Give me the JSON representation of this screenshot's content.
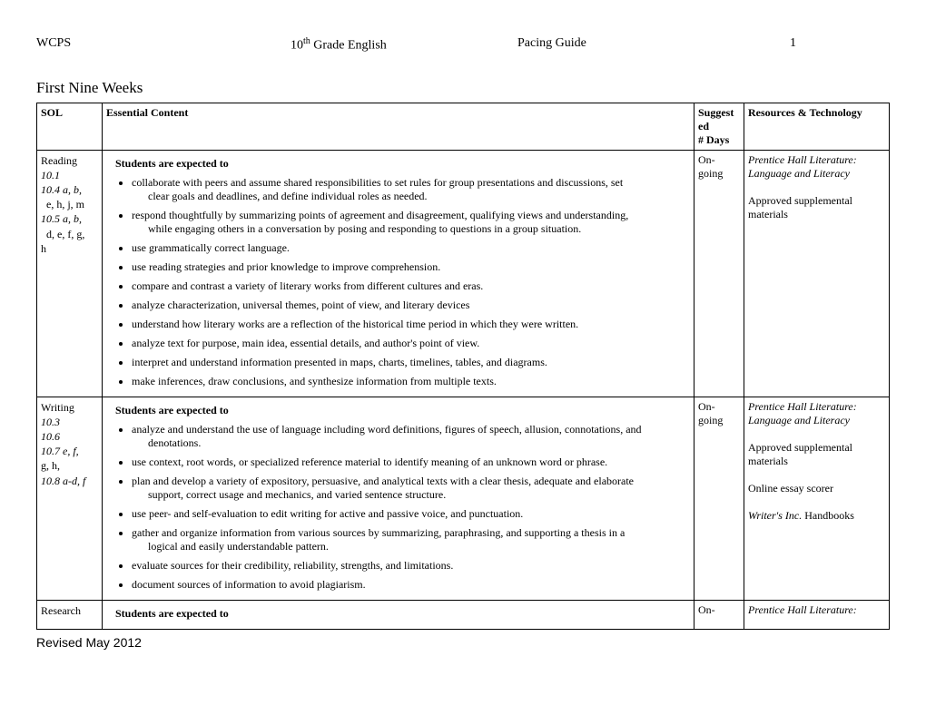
{
  "header": {
    "left": "WCPS",
    "course_prefix": "10",
    "course_sup": "th",
    "course_suffix": " Grade English",
    "guide": "Pacing Guide",
    "page": "1"
  },
  "section_title": "First Nine Weeks",
  "columns": {
    "sol": "SOL",
    "content": "Essential Content",
    "days_a": "Suggest",
    "days_b": "ed",
    "days_c": "# Days",
    "resources": "Resources & Technology"
  },
  "rows": [
    {
      "sol_lines": [
        {
          "t": "Reading",
          "italic": false
        },
        {
          "t": "10.1",
          "italic": true
        },
        {
          "t": "10.4 a, b,",
          "italic": true
        },
        {
          "t": "e, h, j, m",
          "italic": false,
          "indent": true
        },
        {
          "t": "10.5 a, b,",
          "italic": true
        },
        {
          "t": "d, e, f,  g,",
          "italic": false,
          "indent": true
        },
        {
          "t": "h",
          "italic": false
        }
      ],
      "lead": "Students are expected to",
      "bullets": [
        {
          "main": "collaborate with peers and assume shared responsibilities to set rules for group presentations and discussions, set",
          "cont": "clear goals and deadlines, and define individual roles as needed."
        },
        {
          "main": "respond thoughtfully by summarizing points of agreement and disagreement, qualifying views and understanding,",
          "cont": "while engaging others in a conversation by posing and responding to questions in a group situation."
        },
        {
          "main": "use grammatically correct  language."
        },
        {
          "main": "use reading strategies and prior knowledge to improve comprehension."
        },
        {
          "main": " compare and contrast a variety of literary works from different cultures and eras."
        },
        {
          "main": "analyze characterization, universal themes, point of view, and literary devices"
        },
        {
          "main": "understand how literary works are a reflection of the historical time period in which they were written."
        },
        {
          "main": "analyze text for purpose, main idea, essential details, and author's point of view."
        },
        {
          "main": "interpret and understand information presented in maps, charts, timelines, tables, and diagrams."
        },
        {
          "main": "make inferences, draw conclusions, and synthesize information from multiple texts."
        }
      ],
      "days_a": "On-",
      "days_b": "going",
      "resources": [
        {
          "t": "Prentice Hall Literature:",
          "italic": true
        },
        {
          "t": "Language and Literacy",
          "italic": true
        },
        {
          "t": ""
        },
        {
          "t": "Approved supplemental"
        },
        {
          "t": "materials"
        }
      ]
    },
    {
      "sol_lines": [
        {
          "t": "Writing",
          "italic": false
        },
        {
          "t": "10.3",
          "italic": true
        },
        {
          "t": "10.6",
          "italic": true
        },
        {
          "t": "10.7 e, f,",
          "italic": true
        },
        {
          "t": "g, h,",
          "italic": false
        },
        {
          "t": "10.8 a-d, f",
          "italic": true
        }
      ],
      "lead": "Students are expected to",
      "bullets": [
        {
          "main": "analyze and understand the use of language including word definitions, figures of speech, allusion, connotations, and",
          "cont": "denotations."
        },
        {
          "main": "use context, root words, or specialized reference material  to identify meaning of  an unknown  word or phrase."
        },
        {
          "main": "plan and develop a variety of expository, persuasive, and analytical texts with a clear thesis, adequate and elaborate",
          "cont": "support, correct usage and mechanics, and varied sentence structure."
        },
        {
          "main": "use peer- and self-evaluation to edit writing for active and passive voice, and punctuation."
        },
        {
          "main": "gather and organize information from various sources by summarizing, paraphrasing, and supporting a thesis in a",
          "cont": "logical and easily understandable pattern."
        },
        {
          "main": "evaluate sources for their credibility, reliability, strengths, and limitations."
        },
        {
          "main": "document sources of information to avoid plagiarism."
        }
      ],
      "days_a": "On-",
      "days_b": "going",
      "resources": [
        {
          "t": "Prentice Hall Literature:",
          "italic": true
        },
        {
          "t": "Language and Literacy",
          "italic": true
        },
        {
          "t": ""
        },
        {
          "t": "Approved supplemental"
        },
        {
          "t": "materials"
        },
        {
          "t": ""
        },
        {
          "t": "Online essay scorer"
        },
        {
          "t": ""
        },
        {
          "t": "Writer's Inc. Handbooks",
          "mixed": true
        }
      ]
    },
    {
      "sol_lines": [
        {
          "t": "Research",
          "italic": false
        }
      ],
      "lead": "Students are expected to",
      "bullets": [],
      "days_a": "On-",
      "days_b": "",
      "resources": [
        {
          "t": "Prentice Hall Literature:",
          "italic": true
        }
      ]
    }
  ],
  "footer": "Revised May 2012"
}
